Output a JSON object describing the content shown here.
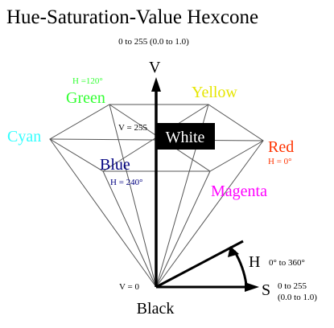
{
  "title": "Hue-Saturation-Value Hexcone",
  "axes": {
    "v": {
      "label": "V",
      "range": "0 to 255 (0.0 to 1.0)"
    },
    "h": {
      "label": "H",
      "range": "0° to 360°"
    },
    "s": {
      "label": "S",
      "range_line1": "0 to 255",
      "range_line2": "(0.0 to 1.0)"
    }
  },
  "vertices": {
    "green": {
      "label": "Green",
      "sublabel": "H =120°",
      "color": "#33ff33"
    },
    "yellow": {
      "label": "Yellow",
      "color": "#e6e600"
    },
    "cyan": {
      "label": "Cyan",
      "color": "#33ffff"
    },
    "red": {
      "label": "Red",
      "sublabel": "H = 0°",
      "color": "#ff3300"
    },
    "blue": {
      "label": "Blue",
      "sublabel": "H = 240°",
      "color": "#000080"
    },
    "magenta": {
      "label": "Magenta",
      "color": "#ff00ff"
    },
    "white": {
      "label": "White"
    },
    "black": {
      "label": "Black"
    }
  },
  "value_marks": {
    "top": "V = 255",
    "bottom": "V = 0"
  }
}
